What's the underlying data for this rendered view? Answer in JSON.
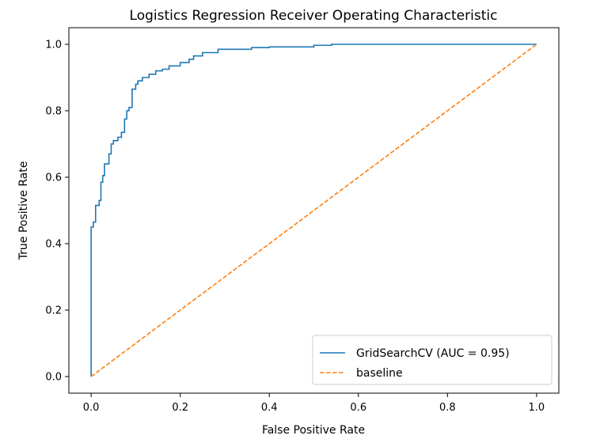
{
  "chart_data": {
    "type": "line",
    "title": "Logistics Regression Receiver Operating Characteristic",
    "xlabel": "False Positive Rate",
    "ylabel": "True Positive Rate",
    "xlim": [
      -0.05,
      1.05
    ],
    "ylim": [
      -0.05,
      1.05
    ],
    "xticks": [
      0.0,
      0.2,
      0.4,
      0.6,
      0.8,
      1.0
    ],
    "xtick_labels": [
      "0.0",
      "0.2",
      "0.4",
      "0.6",
      "0.8",
      "1.0"
    ],
    "yticks": [
      0.0,
      0.2,
      0.4,
      0.6,
      0.8,
      1.0
    ],
    "ytick_labels": [
      "0.0",
      "0.2",
      "0.4",
      "0.6",
      "0.8",
      "1.0"
    ],
    "grid": false,
    "legend_position": "lower-right",
    "series": [
      {
        "name": "GridSearchCV (AUC = 0.95)",
        "color": "#1f77b4",
        "style": "solid",
        "step": true,
        "x": [
          0.0,
          0.0,
          0.005,
          0.005,
          0.01,
          0.01,
          0.018,
          0.018,
          0.022,
          0.022,
          0.026,
          0.026,
          0.03,
          0.03,
          0.04,
          0.04,
          0.045,
          0.045,
          0.05,
          0.05,
          0.06,
          0.06,
          0.068,
          0.068,
          0.075,
          0.075,
          0.08,
          0.08,
          0.085,
          0.085,
          0.092,
          0.092,
          0.1,
          0.1,
          0.105,
          0.105,
          0.115,
          0.115,
          0.13,
          0.13,
          0.145,
          0.145,
          0.16,
          0.16,
          0.175,
          0.175,
          0.2,
          0.2,
          0.22,
          0.22,
          0.23,
          0.23,
          0.25,
          0.25,
          0.285,
          0.285,
          0.36,
          0.36,
          0.4,
          0.4,
          0.5,
          0.5,
          0.54,
          0.54,
          1.0
        ],
        "y": [
          0.0,
          0.45,
          0.45,
          0.465,
          0.465,
          0.515,
          0.515,
          0.53,
          0.53,
          0.585,
          0.585,
          0.605,
          0.605,
          0.64,
          0.64,
          0.67,
          0.67,
          0.7,
          0.7,
          0.71,
          0.71,
          0.72,
          0.72,
          0.735,
          0.735,
          0.775,
          0.775,
          0.8,
          0.8,
          0.81,
          0.81,
          0.865,
          0.865,
          0.88,
          0.88,
          0.89,
          0.89,
          0.9,
          0.9,
          0.91,
          0.91,
          0.92,
          0.92,
          0.925,
          0.925,
          0.935,
          0.935,
          0.945,
          0.945,
          0.955,
          0.955,
          0.965,
          0.965,
          0.975,
          0.975,
          0.985,
          0.985,
          0.99,
          0.99,
          0.992,
          0.992,
          0.997,
          0.997,
          1.0,
          1.0
        ]
      },
      {
        "name": "baseline",
        "color": "#ff7f0e",
        "style": "dashed",
        "x": [
          0.0,
          1.0
        ],
        "y": [
          0.0,
          1.0
        ]
      }
    ]
  }
}
